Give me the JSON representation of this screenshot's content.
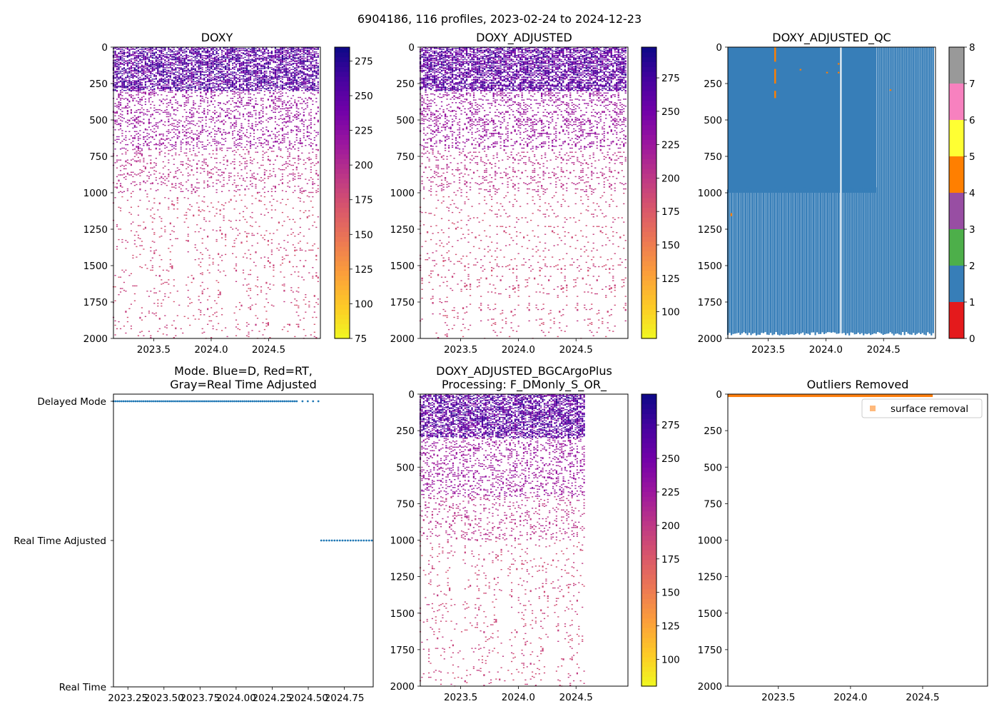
{
  "suptitle": "6904186, 116 profiles, 2023-02-24 to 2024-12-23",
  "colors": {
    "qc": [
      "#e41a1c",
      "#377eb8",
      "#4daf4a",
      "#984ea3",
      "#ff7f00",
      "#ffff33",
      "#a65628",
      "#f781bf",
      "#999999"
    ],
    "plasma": [
      "#f0f921",
      "#fdca26",
      "#fb9f3a",
      "#ed7953",
      "#d8576b",
      "#bd3786",
      "#9c179e",
      "#7201a8",
      "#46039f",
      "#0d0887"
    ],
    "mode_points": "#1f77b4",
    "outlier": "#ff7f0e"
  },
  "chart_data": [
    {
      "id": "doxy",
      "type": "heatmap",
      "title": "DOXY",
      "xlim": [
        2023.15,
        2024.95
      ],
      "ylim": [
        2000,
        0
      ],
      "xticks": [
        "2023.5",
        "2024.0",
        "2024.5"
      ],
      "xtick_values": [
        2023.5,
        2024.0,
        2024.5
      ],
      "yticks": [
        "0",
        "250",
        "500",
        "750",
        "1000",
        "1250",
        "1500",
        "1750",
        "2000"
      ],
      "ytick_values": [
        0,
        250,
        500,
        750,
        1000,
        1250,
        1500,
        1750,
        2000
      ],
      "n_profiles": 116,
      "time_range": [
        2023.15,
        2024.93
      ],
      "value_bands": [
        {
          "depth": [
            0,
            300
          ],
          "value": 250
        },
        {
          "depth": [
            300,
            700
          ],
          "value": 215
        },
        {
          "depth": [
            700,
            1000
          ],
          "value": 195
        },
        {
          "depth": [
            1000,
            2000
          ],
          "value": 180
        }
      ],
      "colorbar": {
        "min": 75,
        "max": 285,
        "ticks": [
          "75",
          "100",
          "125",
          "150",
          "175",
          "200",
          "225",
          "250",
          "275"
        ],
        "tick_values": [
          75,
          100,
          125,
          150,
          175,
          200,
          225,
          250,
          275
        ]
      }
    },
    {
      "id": "doxy_adjusted",
      "type": "heatmap",
      "title": "DOXY_ADJUSTED",
      "xlim": [
        2023.15,
        2024.95
      ],
      "ylim": [
        2000,
        0
      ],
      "xticks": [
        "2023.5",
        "2024.0",
        "2024.5"
      ],
      "xtick_values": [
        2023.5,
        2024.0,
        2024.5
      ],
      "yticks": [
        "0",
        "250",
        "500",
        "750",
        "1000",
        "1250",
        "1500",
        "1750",
        "2000"
      ],
      "ytick_values": [
        0,
        250,
        500,
        750,
        1000,
        1250,
        1500,
        1750,
        2000
      ],
      "n_profiles": 116,
      "time_range": [
        2023.15,
        2024.93
      ],
      "value_bands": [
        {
          "depth": [
            0,
            300
          ],
          "value": 260
        },
        {
          "depth": [
            300,
            700
          ],
          "value": 225
        },
        {
          "depth": [
            700,
            1000
          ],
          "value": 205
        },
        {
          "depth": [
            1000,
            2000
          ],
          "value": 190
        }
      ],
      "colorbar": {
        "min": 80,
        "max": 298,
        "ticks": [
          "100",
          "125",
          "150",
          "175",
          "200",
          "225",
          "250",
          "275"
        ],
        "tick_values": [
          100,
          125,
          150,
          175,
          200,
          225,
          250,
          275
        ]
      }
    },
    {
      "id": "doxy_adjusted_qc",
      "type": "heatmap",
      "title": "DOXY_ADJUSTED_QC",
      "xlim": [
        2023.15,
        2024.95
      ],
      "ylim": [
        2000,
        0
      ],
      "xticks": [
        "2023.5",
        "2024.0",
        "2024.5"
      ],
      "xtick_values": [
        2023.5,
        2024.0,
        2024.5
      ],
      "yticks": [
        "0",
        "250",
        "500",
        "750",
        "1000",
        "1250",
        "1500",
        "1750",
        "2000"
      ],
      "ytick_values": [
        0,
        250,
        500,
        750,
        1000,
        1250,
        1500,
        1750,
        2000
      ],
      "solid_qc1_depth_max": 1000,
      "solid_qc1_time_max": 2024.44,
      "gap_time": 2024.13,
      "profile_bottom_depth": 1980,
      "qc4_marks": [
        {
          "x": 2023.56,
          "depth": [
            0,
            100
          ]
        },
        {
          "x": 2023.56,
          "depth": [
            150,
            250
          ]
        },
        {
          "x": 2023.56,
          "depth": [
            300,
            350
          ]
        },
        {
          "x": 2023.18,
          "depth": [
            1140,
            1160
          ]
        },
        {
          "x": 2023.78,
          "depth": [
            150,
            160
          ]
        },
        {
          "x": 2024.01,
          "depth": [
            170,
            180
          ]
        },
        {
          "x": 2024.11,
          "depth": [
            110,
            120
          ]
        },
        {
          "x": 2024.11,
          "depth": [
            170,
            180
          ]
        },
        {
          "x": 2024.56,
          "depth": [
            290,
            300
          ]
        }
      ],
      "colorbar": {
        "min": 0,
        "max": 8,
        "ticks": [
          "0",
          "1",
          "2",
          "3",
          "4",
          "5",
          "6",
          "7",
          "8"
        ],
        "tick_values": [
          0,
          1,
          2,
          3,
          4,
          5,
          6,
          7,
          8
        ]
      }
    },
    {
      "id": "mode",
      "type": "scatter",
      "title": "Mode. Blue=D, Red=RT,\nGray=Real Time Adjusted",
      "xlim": [
        2023.15,
        2024.95
      ],
      "xticks": [
        "2023.25",
        "2023.50",
        "2023.75",
        "2024.00",
        "2024.25",
        "2024.50",
        "2024.75"
      ],
      "xtick_values": [
        2023.25,
        2023.5,
        2023.75,
        2024.0,
        2024.25,
        2024.5,
        2024.75
      ],
      "ycategories": [
        "Real Time",
        "Real Time Adjusted",
        "Delayed Mode"
      ],
      "series": [
        {
          "name": "Delayed Mode",
          "level": 2,
          "x_range": [
            2023.15,
            2024.42
          ],
          "count": 92
        },
        {
          "name": "Delayed Mode",
          "level": 2,
          "x_range": [
            2024.46,
            2024.57
          ],
          "count": 4
        },
        {
          "name": "Real Time Adjusted",
          "level": 1,
          "x_range": [
            2024.59,
            2024.94
          ],
          "count": 20
        }
      ]
    },
    {
      "id": "bgc",
      "type": "heatmap",
      "title": "DOXY_ADJUSTED_BGCArgoPlus\nProcessing: F_DMonly_S_OR_",
      "xlim": [
        2023.15,
        2024.95
      ],
      "ylim": [
        2000,
        0
      ],
      "xticks": [
        "2023.5",
        "2024.0",
        "2024.5"
      ],
      "xtick_values": [
        2023.5,
        2024.0,
        2024.5
      ],
      "yticks": [
        "0",
        "250",
        "500",
        "750",
        "1000",
        "1250",
        "1500",
        "1750",
        "2000"
      ],
      "ytick_values": [
        0,
        250,
        500,
        750,
        1000,
        1250,
        1500,
        1750,
        2000
      ],
      "n_profiles": 96,
      "time_range": [
        2023.15,
        2024.57
      ],
      "value_bands": [
        {
          "depth": [
            0,
            300
          ],
          "value": 260
        },
        {
          "depth": [
            300,
            700
          ],
          "value": 225
        },
        {
          "depth": [
            700,
            1000
          ],
          "value": 205
        },
        {
          "depth": [
            1000,
            2000
          ],
          "value": 190
        }
      ],
      "colorbar": {
        "min": 80,
        "max": 298,
        "ticks": [
          "100",
          "125",
          "150",
          "175",
          "200",
          "225",
          "250",
          "275"
        ],
        "tick_values": [
          100,
          125,
          150,
          175,
          200,
          225,
          250,
          275
        ]
      }
    },
    {
      "id": "outliers",
      "type": "scatter",
      "title": "Outliers Removed",
      "xlim": [
        2023.15,
        2024.95
      ],
      "ylim": [
        2000,
        0
      ],
      "xticks": [
        "2023.5",
        "2024.0",
        "2024.5"
      ],
      "xtick_values": [
        2023.5,
        2024.0,
        2024.5
      ],
      "yticks": [
        "0",
        "250",
        "500",
        "750",
        "1000",
        "1250",
        "1500",
        "1750",
        "2000"
      ],
      "ytick_values": [
        0,
        250,
        500,
        750,
        1000,
        1250,
        1500,
        1750,
        2000
      ],
      "series": [
        {
          "name": "surface removal",
          "x_range": [
            2023.15,
            2024.57
          ],
          "depth": [
            0,
            10
          ]
        }
      ],
      "legend": {
        "label": "surface removal",
        "loc": "upper right"
      }
    }
  ]
}
